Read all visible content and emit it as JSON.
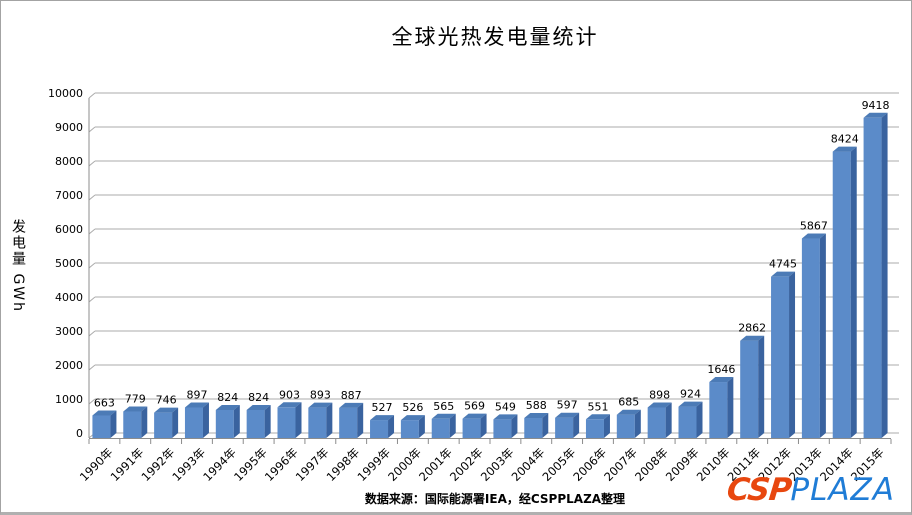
{
  "title": "全球光热发电量统计",
  "chart_data": {
    "type": "bar",
    "title": "全球光热发电量统计",
    "xlabel": "",
    "ylabel": "发电量 GWh",
    "categories": [
      "1990年",
      "1991年",
      "1992年",
      "1993年",
      "1994年",
      "1995年",
      "1996年",
      "1997年",
      "1998年",
      "1999年",
      "2000年",
      "2001年",
      "2002年",
      "2003年",
      "2004年",
      "2005年",
      "2006年",
      "2007年",
      "2008年",
      "2009年",
      "2010年",
      "2011年",
      "2012年",
      "2013年",
      "2014年",
      "2015年"
    ],
    "values": [
      663,
      779,
      746,
      897,
      824,
      824,
      903,
      893,
      887,
      527,
      526,
      565,
      569,
      549,
      588,
      597,
      551,
      685,
      898,
      924,
      1646,
      2862,
      4745,
      5867,
      8424,
      9418
    ],
    "ylim": [
      0,
      10000
    ],
    "yticks": [
      0,
      1000,
      2000,
      3000,
      4000,
      5000,
      6000,
      7000,
      8000,
      9000,
      10000
    ],
    "grid": true,
    "legend_position": "none",
    "style_3d": true,
    "colors": {
      "bar_front": "#5B8BC9",
      "bar_top": "#4C7BB6",
      "bar_side": "#3A639F",
      "gridline": "#ABABAB",
      "axis": "#8C8C8C",
      "text": "#000000"
    }
  },
  "footer": {
    "source": "数据来源：国际能源署IEA，经CSPPLAZA整理"
  },
  "logo": {
    "part1": "CSP",
    "part2": "PLAZA",
    "part1_color": "#E8470F",
    "part2_color": "#1F7CD6"
  }
}
